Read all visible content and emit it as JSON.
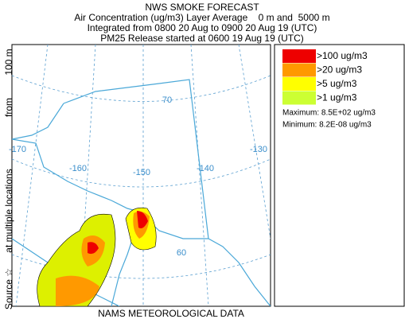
{
  "header": {
    "title": "NWS SMOKE FORECAST",
    "lines": [
      "Air Concentration (ug/m3) Layer Average    0 m and  5000 m",
      "Integrated from 0800 20 Aug to 0900 20 Aug 19 (UTC)",
      "PM25 Release started at 0600 19 Aug 19 (UTC)"
    ]
  },
  "side_label": [
    "Source ☆",
    "at multiple locations",
    "from",
    "100 m"
  ],
  "legend": {
    "items": [
      {
        "label": ">100 ug/m3",
        "color": "#ee0000"
      },
      {
        "label": ">20 ug/m3",
        "color": "#ff9900"
      },
      {
        "label": ">5 ug/m3",
        "color": "#ffff00"
      },
      {
        "label": ">1 ug/m3",
        "color": "#ccff33"
      }
    ]
  },
  "stats": [
    "Maximum: 8.5E+02 ug/m3",
    "Minimum: 8.2E-08 ug/m3"
  ],
  "map": {
    "grid_labels": [
      "70",
      "-170",
      "-160",
      "-150",
      "-140",
      "-130",
      "60"
    ]
  },
  "footer": "NAMS METEOROLOGICAL DATA"
}
